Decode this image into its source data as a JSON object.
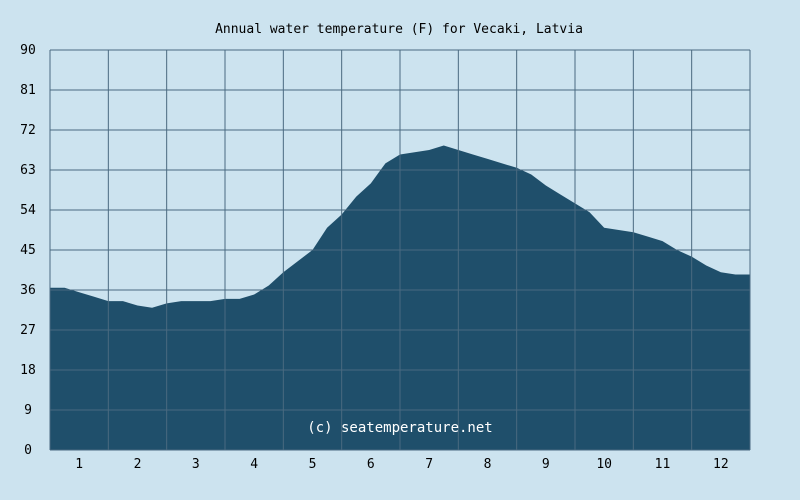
{
  "chart_data": {
    "type": "area",
    "title": "Annual water temperature (F) for Vecaki, Latvia",
    "xlabel": "",
    "ylabel": "",
    "x_ticks": [
      "1",
      "2",
      "3",
      "4",
      "5",
      "6",
      "7",
      "8",
      "9",
      "10",
      "11",
      "12"
    ],
    "y_ticks": [
      "0",
      "9",
      "18",
      "27",
      "36",
      "45",
      "54",
      "63",
      "72",
      "81",
      "90"
    ],
    "xlim": [
      0.5,
      12.5
    ],
    "ylim": [
      0,
      90
    ],
    "grid": true,
    "watermark": "(c) seatemperature.net",
    "colors": {
      "background": "#cce3ef",
      "area": "#1f4f6b",
      "grid": "#4a6a80"
    },
    "series": [
      {
        "x": [
          0.5,
          0.75,
          1.0,
          1.25,
          1.5,
          1.75,
          2.0,
          2.25,
          2.5,
          2.75,
          3.0,
          3.25,
          3.5,
          3.75,
          4.0,
          4.25,
          4.5,
          4.75,
          5.0,
          5.25,
          5.5,
          5.75,
          6.0,
          6.25,
          6.5,
          6.75,
          7.0,
          7.25,
          7.5,
          7.75,
          8.0,
          8.25,
          8.5,
          8.75,
          9.0,
          9.25,
          9.5,
          9.75,
          10.0,
          10.25,
          10.5,
          10.75,
          11.0,
          11.25,
          11.5,
          11.75,
          12.0,
          12.25,
          12.5
        ],
        "values": [
          36.5,
          36.5,
          35.5,
          34.5,
          33.5,
          33.5,
          32.5,
          32.0,
          33.0,
          33.5,
          33.5,
          33.5,
          34.0,
          34.0,
          35.0,
          37.0,
          40.0,
          42.5,
          45.0,
          50.0,
          53.0,
          57.0,
          60.0,
          64.5,
          66.5,
          67.0,
          67.5,
          68.5,
          67.5,
          66.5,
          65.5,
          64.5,
          63.5,
          62.0,
          59.5,
          57.5,
          55.5,
          53.5,
          50.0,
          49.5,
          49.0,
          48.0,
          47.0,
          45.0,
          43.5,
          41.5,
          40.0,
          39.5,
          39.5
        ]
      }
    ]
  }
}
